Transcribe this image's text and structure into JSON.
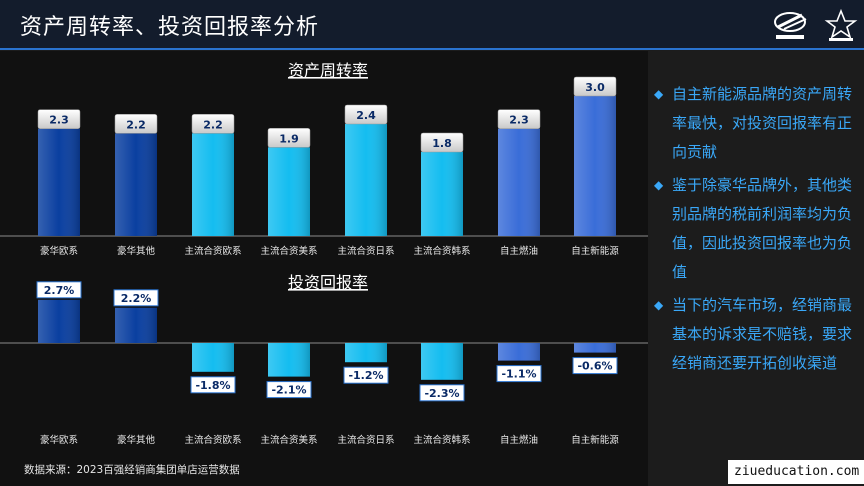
{
  "header": {
    "title": "资产周转率、投资回报率分析"
  },
  "sidebar": {
    "bullets": [
      "自主新能源品牌的资产周转率最快，对投资回报率有正向贡献",
      "鉴于除豪华品牌外，其他类别品牌的税前利润率均为负值，因此投资回报率也为负值",
      "当下的汽车市场，经销商最基本的诉求是不赔钱，要求经销商还要开拓创收渠道"
    ]
  },
  "footer": {
    "source": "数据来源：2023百强经销商集团单店运营数据"
  },
  "watermark": "ziueducation.com",
  "colors": {
    "accent": "#3aa8f8",
    "luxury": "#0a3fa0",
    "mainstream": "#14bdf0",
    "domestic": "#3a6dd8",
    "header_bg": "#131c2c"
  },
  "chart_data": [
    {
      "type": "bar",
      "title": "资产周转率",
      "categories": [
        "豪华欧系",
        "豪华其他",
        "主流合资欧系",
        "主流合资美系",
        "主流合资日系",
        "主流合资韩系",
        "自主燃油",
        "自主新能源"
      ],
      "values": [
        2.3,
        2.2,
        2.2,
        1.9,
        2.4,
        1.8,
        2.3,
        3.0
      ],
      "value_labels": [
        "2.3",
        "2.2",
        "2.2",
        "1.9",
        "2.4",
        "1.8",
        "2.3",
        "3.0"
      ],
      "xlabel": "",
      "ylabel": "",
      "ylim": [
        0,
        3.0
      ]
    },
    {
      "type": "bar",
      "title": "投资回报率",
      "categories": [
        "豪华欧系",
        "豪华其他",
        "主流合资欧系",
        "主流合资美系",
        "主流合资日系",
        "主流合资韩系",
        "自主燃油",
        "自主新能源"
      ],
      "values": [
        2.7,
        2.2,
        -1.8,
        -2.1,
        -1.2,
        -2.3,
        -1.1,
        -0.6
      ],
      "value_labels": [
        "2.7%",
        "2.2%",
        "-1.8%",
        "-2.1%",
        "-1.2%",
        "-2.3%",
        "-1.1%",
        "-0.6%"
      ],
      "unit": "%",
      "xlabel": "",
      "ylabel": "",
      "ylim": [
        -2.3,
        2.7
      ]
    }
  ]
}
